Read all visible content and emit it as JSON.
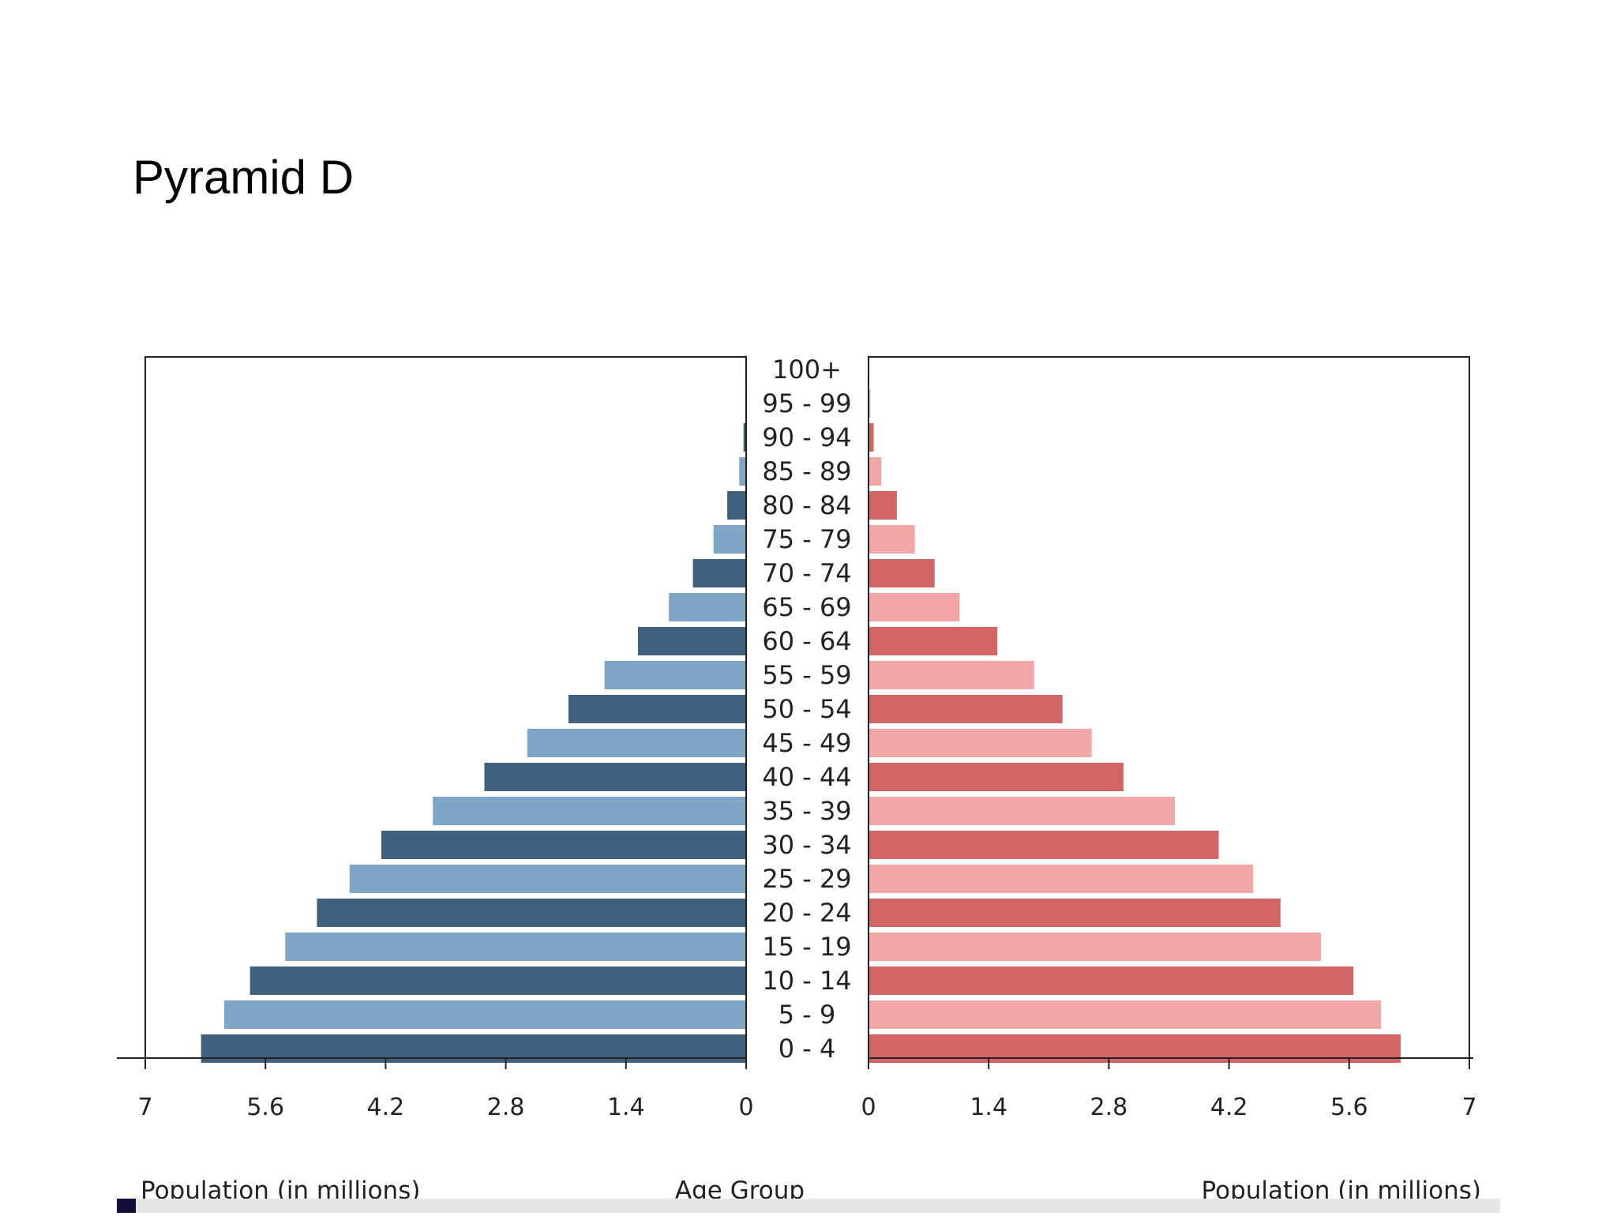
{
  "slide": {
    "title": "Pyramid D"
  },
  "chart_data": {
    "type": "bar",
    "orientation": "horizontal",
    "layout": "population-pyramid",
    "categories": [
      "0 - 4",
      "5 - 9",
      "10 - 14",
      "15 - 19",
      "20 - 24",
      "25 - 29",
      "30 - 34",
      "35 - 39",
      "40 - 44",
      "45 - 49",
      "50 - 54",
      "55 - 59",
      "60 - 64",
      "65 - 69",
      "70 - 74",
      "75 - 79",
      "80 - 84",
      "85 - 89",
      "90 - 94",
      "95 - 99",
      "100+"
    ],
    "series": [
      {
        "side": "left",
        "values": [
          6.35,
          6.08,
          5.78,
          5.37,
          5.0,
          4.62,
          4.25,
          3.65,
          3.05,
          2.55,
          2.07,
          1.65,
          1.26,
          0.9,
          0.62,
          0.38,
          0.22,
          0.08,
          0.03,
          0.01,
          0.01
        ],
        "colors": [
          "#40607f",
          "#7ea6c7"
        ]
      },
      {
        "side": "right",
        "values": [
          6.2,
          5.97,
          5.65,
          5.27,
          4.8,
          4.48,
          4.08,
          3.57,
          2.97,
          2.6,
          2.26,
          1.93,
          1.5,
          1.06,
          0.77,
          0.54,
          0.33,
          0.15,
          0.06,
          0.02,
          0.01
        ],
        "colors": [
          "#d16664",
          "#f2a7a7"
        ]
      }
    ],
    "xlim": [
      0,
      7
    ],
    "ticks": [
      "0",
      "1.4",
      "2.8",
      "4.2",
      "5.6",
      "7"
    ],
    "xlabel_left": "Population (in millions)",
    "xlabel_right": "Population (in millions)",
    "center_label": "Age Group",
    "grid": false,
    "legend": "none"
  }
}
